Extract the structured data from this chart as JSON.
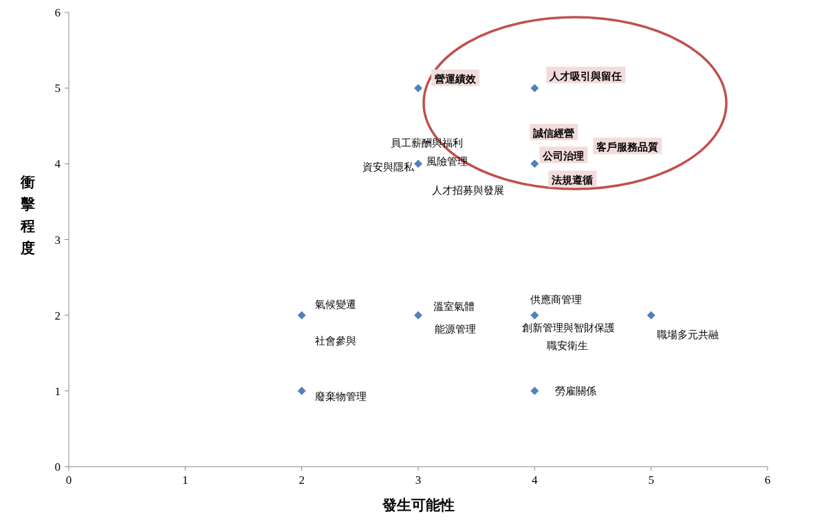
{
  "chart_data": {
    "type": "scatter",
    "xlabel": "發生可能性",
    "ylabel": "衝擊程度",
    "x": [
      2,
      2,
      3,
      3,
      3,
      4,
      4,
      4,
      4,
      5
    ],
    "series": [
      {
        "color": "#4f81bd",
        "values": [
          2,
          1,
          5,
          4,
          2,
          5,
          4,
          2,
          1,
          2
        ]
      }
    ],
    "xlim": [
      0,
      6
    ],
    "ylim": [
      0,
      6
    ],
    "xticks": [
      0,
      1,
      2,
      3,
      4,
      5,
      6
    ],
    "yticks": [
      0,
      1,
      2,
      3,
      4,
      5,
      6
    ],
    "grid": false,
    "marker": "diamond",
    "annotations": [
      {
        "text": "營運績效",
        "x": 3,
        "y": 5
      },
      {
        "text": "人才吸引與留任",
        "x": 4,
        "y": 5
      },
      {
        "text": "誠信經營",
        "x": 4,
        "y": 4
      },
      "客戶服務品質",
      {
        "text": "公司治理",
        "x": 4,
        "y": 4
      },
      {
        "text": "法規遵循",
        "x": 4,
        "y": 4
      },
      {
        "text": "員工薪酬與福利",
        "x": 3,
        "y": 4
      },
      {
        "text": "資安與隱私",
        "x": 3,
        "y": 4
      },
      {
        "text": "風險管理",
        "x": 3,
        "y": 4
      },
      {
        "text": "人才招募與發展",
        "x": 3,
        "y": 4
      },
      {
        "text": "氣候變遷",
        "x": 2,
        "y": 2
      },
      {
        "text": "社會參與",
        "x": 2,
        "y": 2
      },
      {
        "text": "溫室氣體",
        "x": 3,
        "y": 2
      },
      {
        "text": "能源管理",
        "x": 3,
        "y": 2
      },
      {
        "text": "供應商管理",
        "x": 4,
        "y": 2
      },
      {
        "text": "創新管理與智財保護",
        "x": 4,
        "y": 2
      },
      {
        "text": "職安衛生",
        "x": 4,
        "y": 2
      },
      {
        "text": "職場多元共融",
        "x": 5,
        "y": 2
      },
      {
        "text": "廢棄物管理",
        "x": 2,
        "y": 1
      },
      {
        "text": "勞雇關係",
        "x": 4,
        "y": 1
      }
    ]
  }
}
